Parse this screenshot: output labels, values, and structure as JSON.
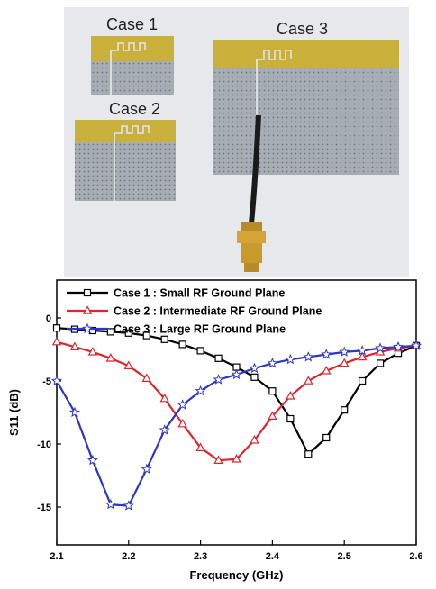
{
  "photo": {
    "labels": [
      "Case 1",
      "Case 2",
      "Case 3"
    ],
    "colors": {
      "substrate": "#c9b03a",
      "ground": "#9ca3ab",
      "cable": "#1a1a1a",
      "connector": "#c89a2e"
    }
  },
  "chart_data": {
    "type": "line",
    "title": "",
    "xlabel": "Frequency (GHz)",
    "ylabel": "S11 (dB)",
    "xlim": [
      2.1,
      2.6
    ],
    "ylim": [
      -18,
      3
    ],
    "xticks": [
      "2.1",
      "2.2",
      "2.3",
      "2.4",
      "2.5",
      "2.6"
    ],
    "yticks": [
      "0",
      "-5",
      "-10",
      "-15"
    ],
    "xtick_values": [
      2.1,
      2.2,
      2.3,
      2.4,
      2.5,
      2.6
    ],
    "ytick_values": [
      0,
      -5,
      -10,
      -15
    ],
    "legend_position": "top-right",
    "grid": false,
    "series": [
      {
        "name": "Case 1 : Small RF Ground Plane",
        "color": "#000000",
        "marker": "square",
        "x": [
          2.1,
          2.125,
          2.15,
          2.175,
          2.2,
          2.225,
          2.25,
          2.275,
          2.3,
          2.325,
          2.35,
          2.375,
          2.4,
          2.425,
          2.45,
          2.475,
          2.5,
          2.525,
          2.55,
          2.575,
          2.6
        ],
        "y": [
          -0.8,
          -0.9,
          -1.0,
          -1.1,
          -1.2,
          -1.4,
          -1.7,
          -2.1,
          -2.6,
          -3.2,
          -3.9,
          -4.7,
          -5.8,
          -8.0,
          -10.8,
          -9.5,
          -7.3,
          -5.0,
          -3.6,
          -2.8,
          -2.2
        ]
      },
      {
        "name": "Case 2 : Intermediate RF Ground Plane",
        "color": "#e0242b",
        "marker": "triangle",
        "x": [
          2.1,
          2.125,
          2.15,
          2.175,
          2.2,
          2.225,
          2.25,
          2.275,
          2.3,
          2.325,
          2.35,
          2.375,
          2.4,
          2.425,
          2.45,
          2.475,
          2.5,
          2.525,
          2.55,
          2.575,
          2.6
        ],
        "y": [
          -1.9,
          -2.3,
          -2.7,
          -3.2,
          -3.8,
          -4.8,
          -6.4,
          -8.4,
          -10.3,
          -11.3,
          -11.2,
          -9.7,
          -7.8,
          -6.2,
          -5.0,
          -4.2,
          -3.6,
          -3.1,
          -2.7,
          -2.4,
          -2.2
        ]
      },
      {
        "name": "Case 3 : Large RF Ground Plane",
        "color": "#2b35c9",
        "marker": "star",
        "x": [
          2.1,
          2.125,
          2.15,
          2.175,
          2.2,
          2.225,
          2.25,
          2.275,
          2.3,
          2.325,
          2.35,
          2.375,
          2.4,
          2.425,
          2.45,
          2.475,
          2.5,
          2.525,
          2.55,
          2.575,
          2.6
        ],
        "y": [
          -5.0,
          -7.5,
          -11.3,
          -14.8,
          -14.9,
          -12.0,
          -8.9,
          -6.9,
          -5.8,
          -4.9,
          -4.5,
          -4.0,
          -3.6,
          -3.3,
          -3.1,
          -2.9,
          -2.7,
          -2.6,
          -2.4,
          -2.3,
          -2.2
        ]
      }
    ]
  }
}
